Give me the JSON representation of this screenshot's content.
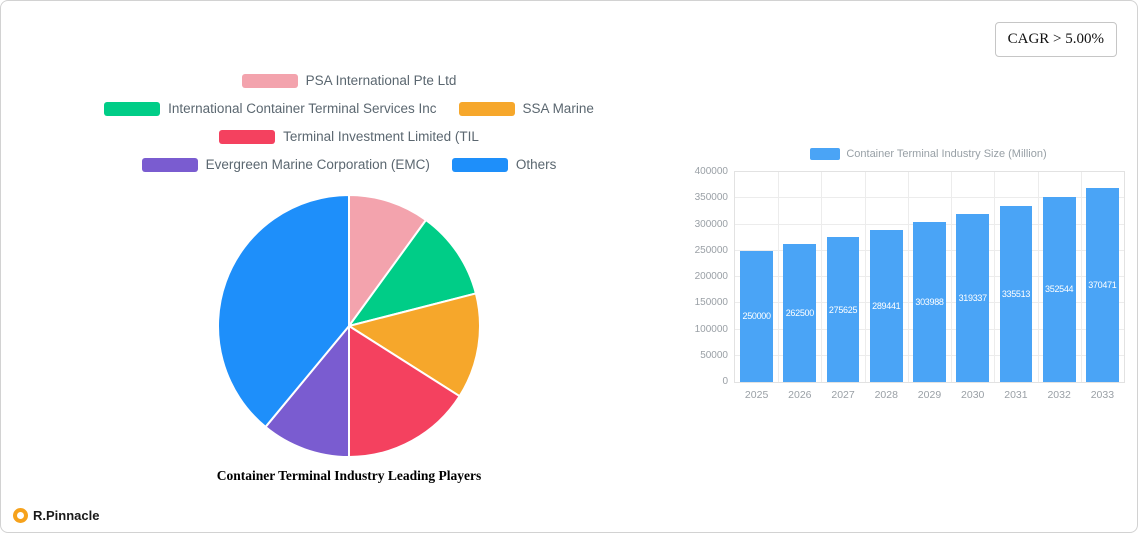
{
  "badge": {
    "text": "CAGR > 5.00%"
  },
  "brand": {
    "name": "R.Pinnacle",
    "icon_color": "#f6a21c"
  },
  "chart_data": [
    {
      "type": "pie",
      "title": "Container Terminal Industry Leading Players",
      "legend_position": "top",
      "labels": [
        "PSA International Pte Ltd",
        "International Container Terminal Services Inc",
        "SSA Marine",
        "Terminal Investment Limited (TIL",
        "Evergreen Marine Corporation (EMC)",
        "Others"
      ],
      "values": [
        10,
        11,
        13,
        16,
        11,
        39
      ],
      "colors": [
        "#f3a3ad",
        "#00cd87",
        "#f6a72b",
        "#f4415f",
        "#7a5cd0",
        "#1e8ffa"
      ]
    },
    {
      "type": "bar",
      "legend": "Container Terminal Industry Size (Million)",
      "categories": [
        "2025",
        "2026",
        "2027",
        "2028",
        "2029",
        "2030",
        "2031",
        "2032",
        "2033"
      ],
      "values": [
        250000,
        262500,
        275625,
        289441,
        303988,
        319337,
        335513,
        352544,
        370471
      ],
      "color": "#4aa4f6",
      "xlabel": "",
      "ylabel": "",
      "ylim": [
        0,
        400000
      ],
      "yticks": [
        0,
        50000,
        100000,
        150000,
        200000,
        250000,
        300000,
        350000,
        400000
      ],
      "grid": true,
      "legend_position": "top",
      "value_label_color": "#ffffff"
    }
  ]
}
